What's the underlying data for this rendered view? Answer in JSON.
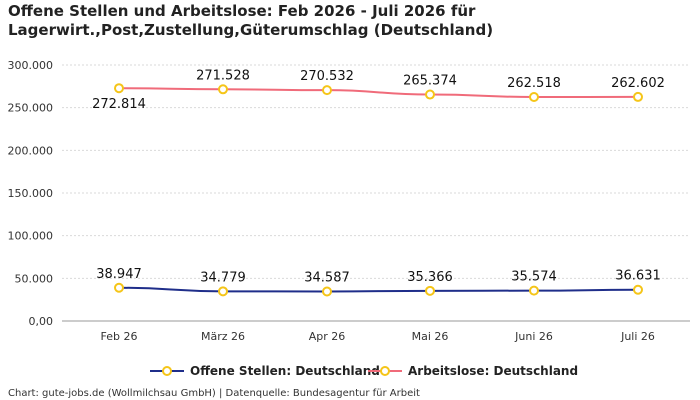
{
  "chart_data": {
    "type": "line",
    "title_lines": [
      "Offene Stellen und Arbeitslose: Feb 2026 - Juli 2026 für",
      "Lagerwirt.,Post,Zustellung,Güterumschlag (Deutschland)"
    ],
    "categories": [
      "Feb 26",
      "März 26",
      "Apr 26",
      "Mai 26",
      "Juni 26",
      "Juli 26"
    ],
    "y_ticks": [
      "0,00",
      "50.000",
      "100.000",
      "150.000",
      "200.000",
      "250.000",
      "300.000"
    ],
    "ylim": [
      0,
      300000
    ],
    "grid": true,
    "legend_position": "bottom",
    "series": [
      {
        "name": "Offene Stellen: Deutschland",
        "color": "#1f2e8a",
        "values": [
          38947,
          34779,
          34587,
          35366,
          35574,
          36631
        ],
        "labels": [
          "38.947",
          "34.779",
          "34.587",
          "35.366",
          "35.574",
          "36.631"
        ]
      },
      {
        "name": "Arbeitslose: Deutschland",
        "color": "#f06b7a",
        "values": [
          272814,
          271528,
          270532,
          265374,
          262518,
          262602
        ],
        "labels": [
          "272.814",
          "271.528",
          "270.532",
          "265.374",
          "262.518",
          "262.602"
        ]
      }
    ],
    "marker_color": "#f5c518",
    "credit": "Chart: gute-jobs.de (Wollmilchsau GmbH) | Datenquelle: Bundesagentur für Arbeit"
  }
}
